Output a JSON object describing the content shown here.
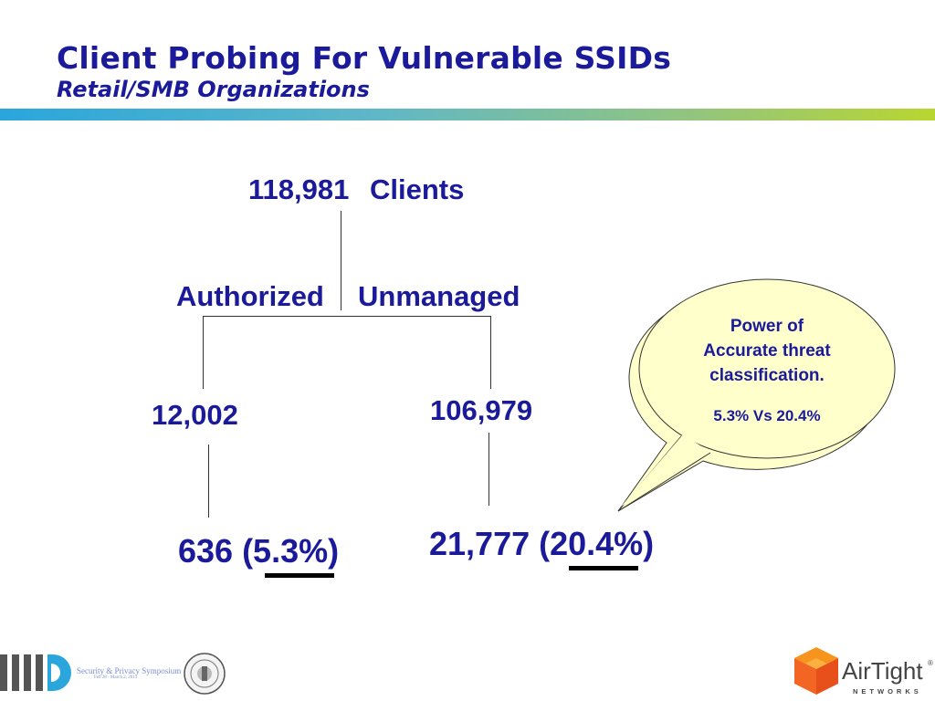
{
  "header": {
    "title": "Client Probing For Vulnerable SSIDs",
    "subtitle": "Retail/SMB Organizations",
    "accent_gradient": [
      "#2aa6dc",
      "#b9d630"
    ]
  },
  "tree": {
    "root_count": "118,981",
    "root_label": "Clients",
    "left_branch_label": "Authorized",
    "right_branch_label": "Unmanaged",
    "left_count": "12,002",
    "right_count": "106,979",
    "left_result": "636 (5.3%)",
    "right_result": "21,777 (20.4%)"
  },
  "callout": {
    "line1": "Power of",
    "line2": "Accurate threat",
    "line3": "classification.",
    "line4": "5.3% Vs 20.4%",
    "fill": "#ffffcc"
  },
  "footer": {
    "event_title": "Security & Privacy Symposium",
    "event_dates": "Feb 28 - March 2, 2013",
    "brand_name": "AirTight",
    "brand_tagline": "NETWORKS",
    "brand_color": "#f26522"
  }
}
